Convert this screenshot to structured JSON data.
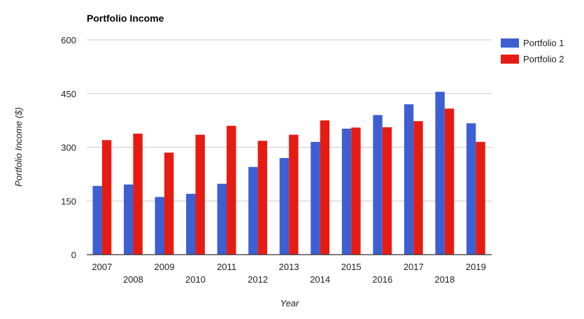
{
  "chart_data": {
    "type": "bar",
    "title": "Portfolio Income",
    "xlabel": "Year",
    "ylabel": "Portfolio Income ($)",
    "ylim": [
      0,
      600
    ],
    "yticks": [
      0,
      150,
      300,
      450,
      600
    ],
    "grid": true,
    "legend_position": "right",
    "categories": [
      "2007",
      "2008",
      "2009",
      "2010",
      "2011",
      "2012",
      "2013",
      "2014",
      "2015",
      "2016",
      "2017",
      "2018",
      "2019"
    ],
    "series": [
      {
        "name": "Portfolio 1",
        "color": "#3c5fd2",
        "values": [
          192,
          196,
          161,
          170,
          198,
          245,
          270,
          315,
          352,
          390,
          420,
          455,
          367
        ]
      },
      {
        "name": "Portfolio 2",
        "color": "#e61c12",
        "values": [
          320,
          338,
          285,
          335,
          360,
          318,
          335,
          375,
          355,
          356,
          373,
          408,
          315
        ]
      }
    ]
  },
  "colors": {
    "axis": "#333333",
    "gridline": "#cccccc",
    "text": "#222222"
  }
}
